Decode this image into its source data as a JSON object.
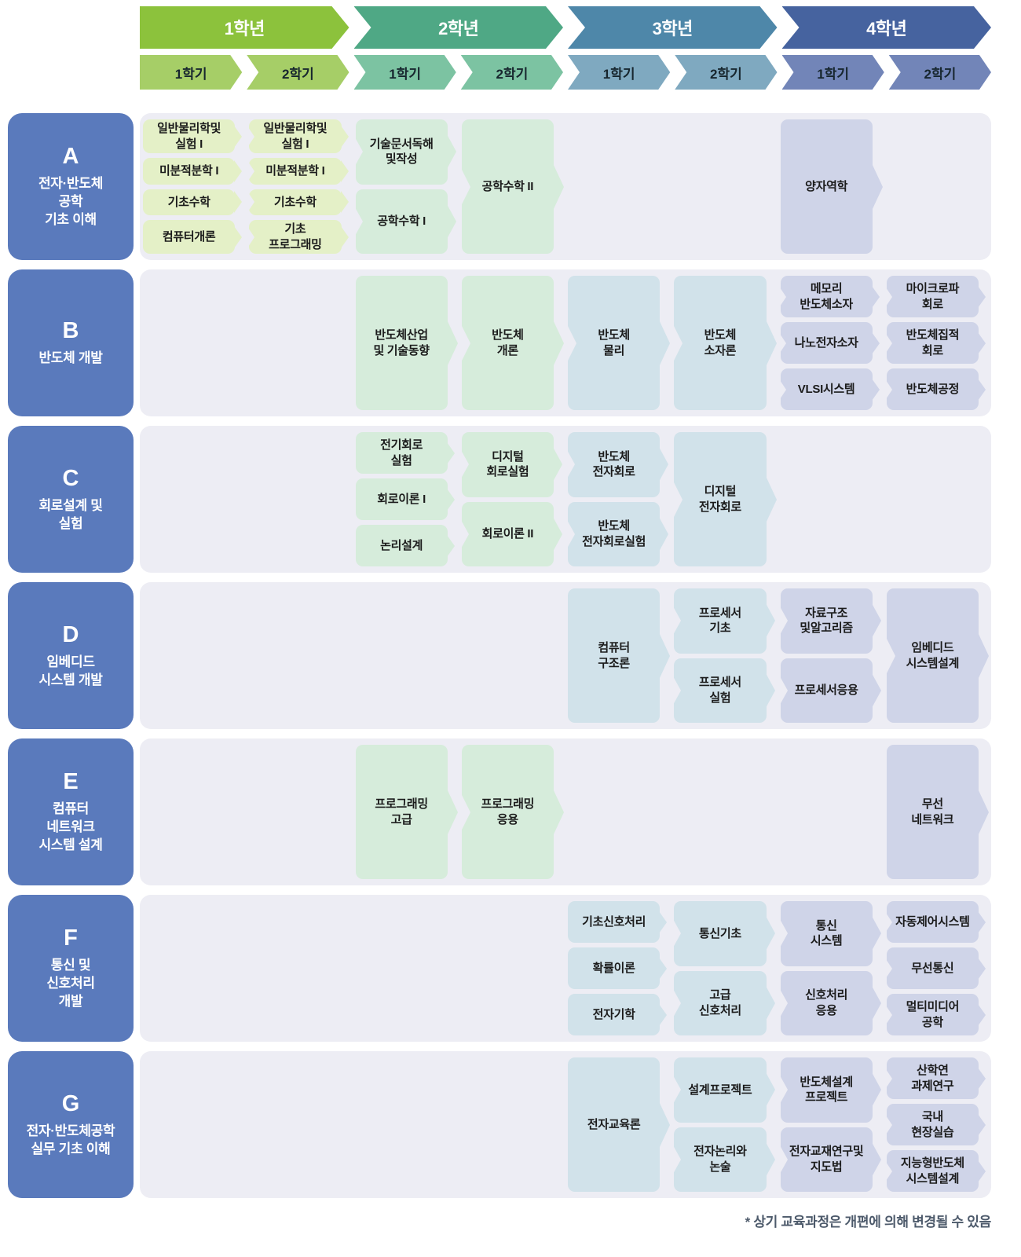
{
  "palette": {
    "page_bg": "#ffffff",
    "row_bg": "#ededf4",
    "label_bg": "#5a7abc",
    "footnote_text": "#4d5a6b"
  },
  "header": {
    "years": [
      {
        "label": "1학년",
        "color": "#8cc23c",
        "semester_color": "#a6ce67",
        "card_color": "#e4f0c7",
        "semesters": [
          {
            "label": "1학기"
          },
          {
            "label": "2학기"
          }
        ]
      },
      {
        "label": "2학년",
        "color": "#4fa885",
        "semester_color": "#7cc3a2",
        "card_color": "#d6ecdb",
        "semesters": [
          {
            "label": "1학기"
          },
          {
            "label": "2학기"
          }
        ]
      },
      {
        "label": "3학년",
        "color": "#4e87a9",
        "semester_color": "#7fa9c0",
        "card_color": "#d1e2ea",
        "semesters": [
          {
            "label": "1학기"
          },
          {
            "label": "2학기"
          }
        ]
      },
      {
        "label": "4학년",
        "color": "#46639f",
        "semester_color": "#7285b8",
        "card_color": "#cfd4e8",
        "semesters": [
          {
            "label": "1학기"
          },
          {
            "label": "2학기"
          }
        ]
      }
    ]
  },
  "tracks": [
    {
      "letter": "A",
      "title": "전자·반도체\n공학\n기초 이해",
      "courses": [
        {
          "label": "일반물리학및\n실험 I"
        },
        {
          "label": "미분적분학 I"
        },
        {
          "label": "기초수학"
        },
        {
          "label": "컴퓨터개론"
        },
        {
          "label": "일반물리학및\n실험 I"
        },
        {
          "label": "미분적분학 I"
        },
        {
          "label": "기초수학"
        },
        {
          "label": "기초\n프로그래밍"
        },
        {
          "label": "기술문서독해\n및작성"
        },
        {
          "label": "공학수학 I"
        },
        {
          "label": "공학수학 II"
        },
        {
          "label": "양자역학"
        }
      ]
    },
    {
      "letter": "B",
      "title": "반도체 개발",
      "courses": [
        {
          "label": "반도체산업\n및 기술동향"
        },
        {
          "label": "반도체\n개론"
        },
        {
          "label": "반도체\n물리"
        },
        {
          "label": "반도체\n소자론"
        },
        {
          "label": "메모리\n반도체소자"
        },
        {
          "label": "나노전자소자"
        },
        {
          "label": "VLSI시스템"
        },
        {
          "label": "마이크로파\n회로"
        },
        {
          "label": "반도체집적\n회로"
        },
        {
          "label": "반도체공정"
        }
      ]
    },
    {
      "letter": "C",
      "title": "회로설계 및\n실험",
      "courses": [
        {
          "label": "전기회로\n실험"
        },
        {
          "label": "회로이론 I"
        },
        {
          "label": "논리설계"
        },
        {
          "label": "디지털\n회로실험"
        },
        {
          "label": "회로이론 II"
        },
        {
          "label": "반도체\n전자회로"
        },
        {
          "label": "반도체\n전자회로실험"
        },
        {
          "label": "디지털\n전자회로"
        }
      ]
    },
    {
      "letter": "D",
      "title": "임베디드\n시스템 개발",
      "courses": [
        {
          "label": "컴퓨터\n구조론"
        },
        {
          "label": "프로세서\n기초"
        },
        {
          "label": "프로세서\n실험"
        },
        {
          "label": "자료구조\n및알고리즘"
        },
        {
          "label": "프로세서응용"
        },
        {
          "label": "임베디드\n시스템설계"
        }
      ]
    },
    {
      "letter": "E",
      "title": "컴퓨터\n네트워크\n시스템 설계",
      "courses": [
        {
          "label": "프로그래밍\n고급"
        },
        {
          "label": "프로그래밍\n응용"
        },
        {
          "label": "무선\n네트워크"
        }
      ]
    },
    {
      "letter": "F",
      "title": "통신 및\n신호처리\n개발",
      "courses": [
        {
          "label": "기초신호처리"
        },
        {
          "label": "확률이론"
        },
        {
          "label": "전자기학"
        },
        {
          "label": "통신기초"
        },
        {
          "label": "고급\n신호처리"
        },
        {
          "label": "통신\n시스템"
        },
        {
          "label": "신호처리\n응용"
        },
        {
          "label": "자동제어시스템"
        },
        {
          "label": "무선통신"
        },
        {
          "label": "멀티미디어\n공학"
        }
      ]
    },
    {
      "letter": "G",
      "title": "전자·반도체공학\n실무 기초 이해",
      "courses": [
        {
          "label": "전자교육론"
        },
        {
          "label": "설계프로젝트"
        },
        {
          "label": "전자논리와\n논술"
        },
        {
          "label": "반도체설계\n프로젝트"
        },
        {
          "label": "전자교재연구및\n지도법"
        },
        {
          "label": "산학연\n과제연구"
        },
        {
          "label": "국내\n현장실습"
        },
        {
          "label": "지능형반도체\n시스템설계"
        }
      ]
    }
  ],
  "footnote": "* 상기 교육과정은 개편에 의해 변경될 수 있음"
}
